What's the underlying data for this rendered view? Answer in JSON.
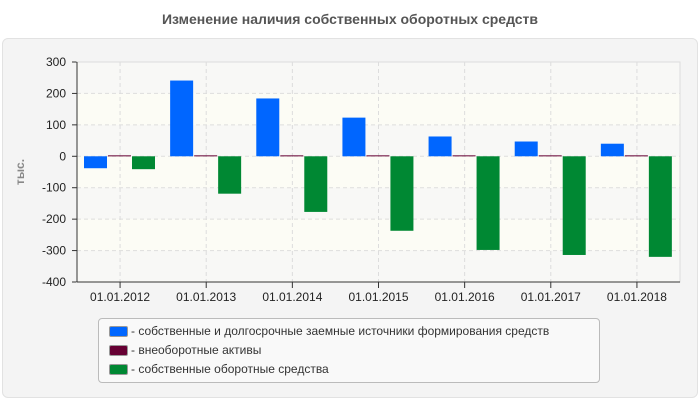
{
  "chart_data": {
    "type": "bar",
    "title": "Изменение наличия собственных оборотных средств",
    "ylabel": "тыс.",
    "xlabel": "",
    "categories": [
      "01.01.2012",
      "01.01.2013",
      "01.01.2014",
      "01.01.2015",
      "01.01.2016",
      "01.01.2017",
      "01.01.2018"
    ],
    "ylim": [
      -400,
      300
    ],
    "yticks": [
      300,
      200,
      100,
      0,
      -100,
      -200,
      -300,
      -400
    ],
    "grid": true,
    "legend_position": "bottom",
    "series": [
      {
        "name": "- собственные и долгосрочные заемные источники формирования средств",
        "color": "#0066ff",
        "values": [
          -38,
          241,
          184,
          123,
          63,
          47,
          40
        ]
      },
      {
        "name": "- внеоборотные активы",
        "color": "#660033",
        "values": [
          3,
          3,
          3,
          3,
          3,
          3,
          3
        ]
      },
      {
        "name": "- собственные оборотные средства",
        "color": "#008833",
        "values": [
          -41,
          -119,
          -177,
          -237,
          -298,
          -314,
          -320
        ]
      }
    ]
  }
}
